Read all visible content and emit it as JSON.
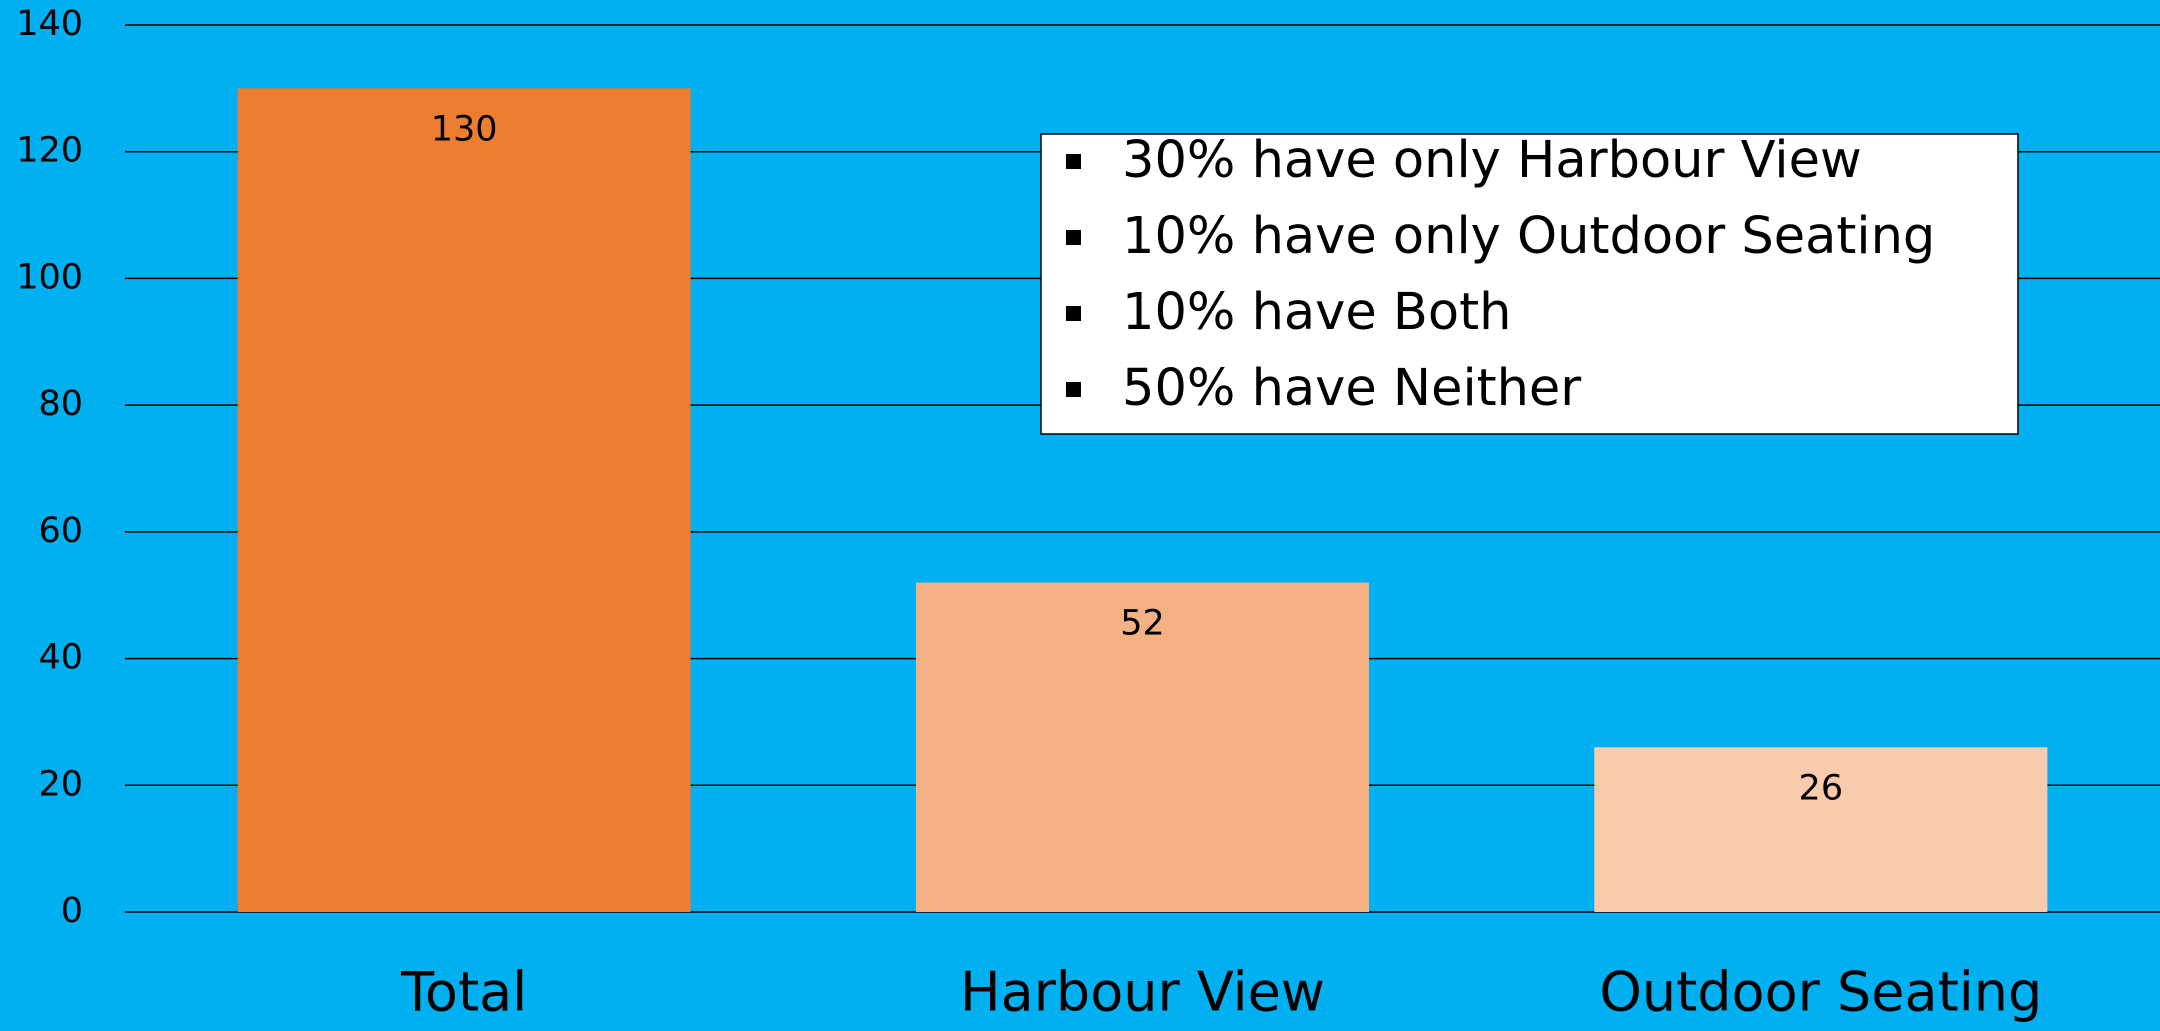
{
  "chart_data": {
    "type": "bar",
    "categories": [
      "Total",
      "Harbour View",
      "Outdoor Seating"
    ],
    "values": [
      130,
      52,
      26
    ],
    "colors": [
      "#ed7d31",
      "#f4b183",
      "#f8cbad"
    ],
    "ylim": [
      0,
      140
    ],
    "yticks": [
      0,
      20,
      40,
      60,
      80,
      100,
      120,
      140
    ],
    "grid": true,
    "data_labels": true,
    "annotations": [
      "30% have only Harbour View",
      "10% have only Outdoor Seating",
      "10% have Both",
      "50% have Neither"
    ]
  }
}
